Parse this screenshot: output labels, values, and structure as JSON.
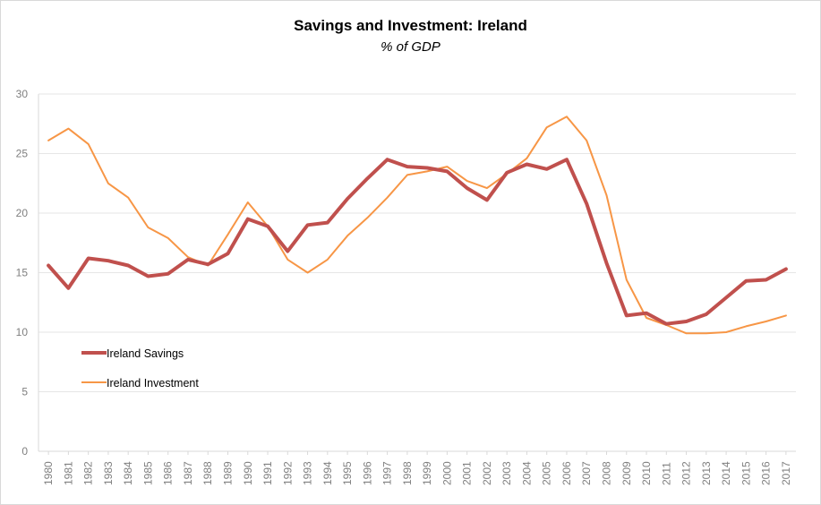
{
  "chart_data": {
    "type": "line",
    "title": "Savings and Investment: Ireland",
    "subtitle": "% of GDP",
    "xlabel": "",
    "ylabel": "",
    "ylim": [
      0,
      30
    ],
    "yticks": [
      0,
      5,
      10,
      15,
      20,
      25,
      30
    ],
    "grid": true,
    "legend_position": "bottom-left",
    "categories": [
      "1980",
      "1981",
      "1982",
      "1983",
      "1984",
      "1985",
      "1986",
      "1987",
      "1988",
      "1989",
      "1990",
      "1991",
      "1992",
      "1993",
      "1994",
      "1995",
      "1996",
      "1997",
      "1998",
      "1999",
      "2000",
      "2001",
      "2002",
      "2003",
      "2004",
      "2005",
      "2006",
      "2007",
      "2008",
      "2009",
      "2010",
      "2011",
      "2012",
      "2013",
      "2014",
      "2015",
      "2016",
      "2017"
    ],
    "series": [
      {
        "name": "Ireland Savings",
        "color": "#c0504d",
        "values": [
          15.6,
          13.7,
          16.2,
          16.0,
          15.6,
          14.7,
          14.9,
          16.1,
          15.7,
          16.6,
          19.5,
          18.9,
          16.8,
          19.0,
          19.2,
          21.2,
          22.9,
          24.5,
          23.9,
          23.8,
          23.5,
          22.1,
          21.1,
          23.4,
          24.1,
          23.7,
          24.5,
          20.8,
          15.8,
          11.4,
          11.6,
          10.7,
          10.9,
          11.5,
          12.9,
          14.3,
          14.4,
          15.3
        ]
      },
      {
        "name": "Ireland Investment",
        "color": "#f79646",
        "values": [
          26.1,
          27.1,
          25.8,
          22.5,
          21.3,
          18.8,
          17.9,
          16.3,
          15.6,
          18.2,
          20.9,
          18.9,
          16.1,
          15.0,
          16.1,
          18.1,
          19.6,
          21.3,
          23.2,
          23.5,
          23.9,
          22.7,
          22.1,
          23.3,
          24.6,
          27.2,
          28.1,
          26.1,
          21.5,
          14.4,
          11.2,
          10.6,
          9.9,
          9.9,
          10.0,
          10.5,
          10.9,
          11.4
        ]
      }
    ]
  }
}
